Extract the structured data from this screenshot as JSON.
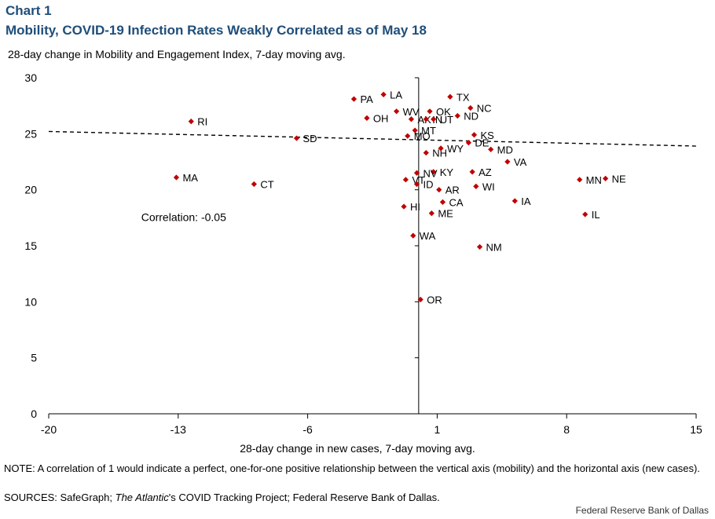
{
  "page": {
    "chart_number": "Chart 1",
    "title": "Mobility, COVID-19 Infection Rates Weakly Correlated as of May 18",
    "note": "NOTE: A correlation of 1 would indicate a perfect, one-for-one positive relationship between the vertical axis (mobility) and the horizontal axis (new cases).",
    "sources_prefix": "SOURCES: SafeGraph; ",
    "sources_italic": "The Atlantic",
    "sources_suffix": "'s COVID Tracking Project; Federal Reserve Bank of Dallas.",
    "credit": "Federal  Reserve  Bank of Dallas"
  },
  "colors": {
    "marker": "#c00000",
    "title": "#1f4e79",
    "axis": "#000000"
  },
  "chart_data": {
    "type": "scatter",
    "title": "Mobility, COVID-19 Infection Rates Weakly Correlated as of May 18",
    "xlabel": "28-day change in new cases, 7-day moving avg.",
    "ylabel": "28-day change in Mobility and Engagement Index, 7-day moving avg.",
    "xlim": [
      -20,
      15
    ],
    "ylim": [
      0,
      30
    ],
    "xticks": [
      -20,
      -13,
      -6,
      1,
      8,
      15
    ],
    "xtick_labels": [
      "-20",
      "-13",
      "-6",
      "1",
      "8",
      "15"
    ],
    "yticks": [
      0,
      5,
      10,
      15,
      20,
      25,
      30
    ],
    "ytick_labels": [
      "0",
      "5",
      "10",
      "15",
      "20",
      "25",
      "30"
    ],
    "grid": false,
    "annotation": "Correlation: -0.05",
    "trendline": {
      "x": [
        -20,
        15
      ],
      "y": [
        25.2,
        23.9
      ],
      "style": "dashed"
    },
    "points": [
      {
        "label": "RI",
        "x": -12.3,
        "y": 26.1
      },
      {
        "label": "MA",
        "x": -13.1,
        "y": 21.1
      },
      {
        "label": "CT",
        "x": -8.9,
        "y": 20.5
      },
      {
        "label": "SD",
        "x": -6.6,
        "y": 24.6
      },
      {
        "label": "PA",
        "x": -3.5,
        "y": 28.1
      },
      {
        "label": "LA",
        "x": -1.9,
        "y": 28.5
      },
      {
        "label": "WV",
        "x": -1.2,
        "y": 27.0
      },
      {
        "label": "OH",
        "x": -2.8,
        "y": 26.4
      },
      {
        "label": "TX",
        "x": 1.7,
        "y": 28.3
      },
      {
        "label": "NC",
        "x": 2.8,
        "y": 27.3
      },
      {
        "label": "OK",
        "x": 0.6,
        "y": 27.0
      },
      {
        "label": "ND",
        "x": 2.1,
        "y": 26.6
      },
      {
        "label": "AK",
        "x": -0.4,
        "y": 26.3
      },
      {
        "label": "IN",
        "x": 0.4,
        "y": 26.3
      },
      {
        "label": "UT",
        "x": 0.8,
        "y": 26.3
      },
      {
        "label": "MT",
        "x": -0.2,
        "y": 25.3
      },
      {
        "label": "MO",
        "x": -0.6,
        "y": 24.8
      },
      {
        "label": "KS",
        "x": 3.0,
        "y": 24.9
      },
      {
        "label": "DE",
        "x": 2.7,
        "y": 24.2
      },
      {
        "label": "MD",
        "x": 3.9,
        "y": 23.6
      },
      {
        "label": "NH",
        "x": 0.4,
        "y": 23.3
      },
      {
        "label": "WY",
        "x": 1.2,
        "y": 23.7
      },
      {
        "label": "VA",
        "x": 4.8,
        "y": 22.5
      },
      {
        "label": "KY",
        "x": 0.8,
        "y": 21.6
      },
      {
        "label": "AZ",
        "x": 2.9,
        "y": 21.6
      },
      {
        "label": "NV",
        "x": -0.1,
        "y": 21.5
      },
      {
        "label": "VT",
        "x": -0.7,
        "y": 20.9
      },
      {
        "label": "ID",
        "x": -0.1,
        "y": 20.5
      },
      {
        "label": "AR",
        "x": 1.1,
        "y": 20.0
      },
      {
        "label": "WI",
        "x": 3.1,
        "y": 20.3
      },
      {
        "label": "MN",
        "x": 8.7,
        "y": 20.9
      },
      {
        "label": "NE",
        "x": 10.1,
        "y": 21.0
      },
      {
        "label": "CA",
        "x": 1.3,
        "y": 18.9
      },
      {
        "label": "IA",
        "x": 5.2,
        "y": 19.0
      },
      {
        "label": "HI",
        "x": -0.8,
        "y": 18.5
      },
      {
        "label": "ME",
        "x": 0.7,
        "y": 17.9
      },
      {
        "label": "IL",
        "x": 9.0,
        "y": 17.8
      },
      {
        "label": "WA",
        "x": -0.3,
        "y": 15.9
      },
      {
        "label": "NM",
        "x": 3.3,
        "y": 14.9
      },
      {
        "label": "OR",
        "x": 0.1,
        "y": 10.2
      }
    ]
  }
}
